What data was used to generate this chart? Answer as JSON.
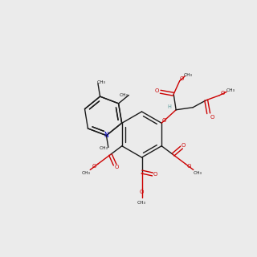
{
  "bg": "#ebebeb",
  "bc": "#1a1a1a",
  "oc": "#cc0000",
  "nc": "#0000cc",
  "hc": "#5a9a9a",
  "lw": 1.0,
  "fs": 5.0
}
